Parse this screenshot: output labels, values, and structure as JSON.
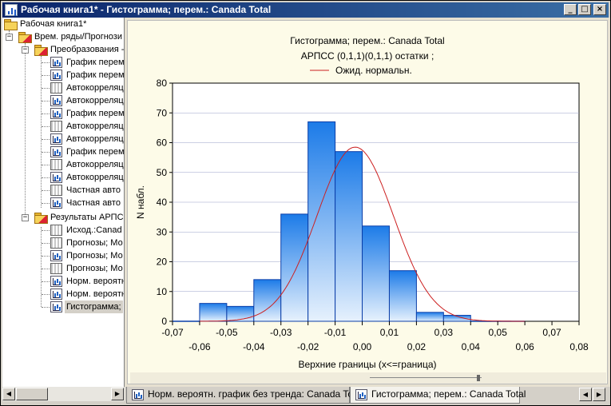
{
  "window": {
    "title": "Рабочая книга1* - Гистограмма; перем.: Canada Total",
    "min_glyph": "_",
    "max_glyph": "□",
    "close_glyph": "×"
  },
  "tree": {
    "root": "Рабочая книга1*",
    "group1": "Врем. ряды/Прогнози",
    "sub1": "Преобразования -",
    "sub1_items": [
      {
        "label": "График перем",
        "icon": "graph-icon"
      },
      {
        "label": "График перем",
        "icon": "graph-icon"
      },
      {
        "label": "Автокорреляц",
        "icon": "table-icon"
      },
      {
        "label": "Автокорреляц",
        "icon": "graph-icon"
      },
      {
        "label": "График перем",
        "icon": "graph-icon"
      },
      {
        "label": "Автокорреляц",
        "icon": "table-icon"
      },
      {
        "label": "Автокорреляц",
        "icon": "graph-icon"
      },
      {
        "label": "График перем",
        "icon": "graph-icon"
      },
      {
        "label": "Автокорреляц",
        "icon": "table-icon"
      },
      {
        "label": "Автокорреляц",
        "icon": "graph-icon"
      },
      {
        "label": "Частная авто",
        "icon": "table-icon"
      },
      {
        "label": "Частная авто",
        "icon": "graph-icon"
      }
    ],
    "sub2": "Результаты АРПС",
    "sub2_items": [
      {
        "label": "Исход.:Canad",
        "icon": "table-icon"
      },
      {
        "label": "Прогнозы; Мо",
        "icon": "table-icon"
      },
      {
        "label": "Прогнозы; Мо",
        "icon": "graph-icon"
      },
      {
        "label": "Прогнозы; Мо",
        "icon": "table-icon"
      },
      {
        "label": "Норм. вероятн",
        "icon": "graph-icon"
      },
      {
        "label": "Норм. вероятн",
        "icon": "graph-icon"
      },
      {
        "label": "Гистограмма;",
        "icon": "graph-icon"
      }
    ]
  },
  "scroll": {
    "left": "◀",
    "right": "▶"
  },
  "tabs": {
    "tab1": "Норм. вероятн. график без тренда: Canada Total",
    "tab2": "Гистограмма; перем.: Canada Total",
    "prev": "◀",
    "next": "▶"
  },
  "colors": {
    "bar_top": "#1c7be8",
    "bar_bottom": "#e6f1fd",
    "bar_edge": "#0a3ea8",
    "curve": "#cc1f1f",
    "plot_bg": "#ffffff",
    "title_bar": "#0a246a"
  },
  "chart_data": {
    "type": "bar",
    "title": "Гистограмма; перем.: Canada Total",
    "subtitle": "АРПСС (0,1,1)(0,1,1) остатки  ;",
    "legend": [
      "Ожид. нормальн."
    ],
    "legend_placement": "top-center",
    "xlabel": "Верхние границы (x<=граница)",
    "ylabel": "N набл.",
    "xlim": [
      -0.07,
      0.08
    ],
    "ylim": [
      0,
      80
    ],
    "yticks": [
      "0",
      "10",
      "20",
      "30",
      "40",
      "50",
      "60",
      "70",
      "80"
    ],
    "xticks_upper": [
      "-0,07",
      "-0,05",
      "-0,03",
      "-0,01",
      "0,01",
      "0,03",
      "0,05",
      "0,07"
    ],
    "xticks_lower": [
      "-0,06",
      "-0,04",
      "-0,02",
      "0,00",
      "0,02",
      "0,04",
      "0,06",
      "0,08"
    ],
    "bin_width": 0.01,
    "bin_upper_bounds": [
      -0.06,
      -0.05,
      -0.04,
      -0.03,
      -0.02,
      -0.01,
      0.0,
      0.01,
      0.02,
      0.03,
      0.04,
      0.05,
      0.06
    ],
    "values": [
      0,
      6,
      5,
      14,
      36,
      67,
      57,
      32,
      17,
      3,
      2,
      0,
      0
    ],
    "grid": "horizontal",
    "normal_curve": {
      "name": "Ожид. нормальн.",
      "mean": -0.0026,
      "sd": 0.0141,
      "peak": 58.5
    }
  }
}
